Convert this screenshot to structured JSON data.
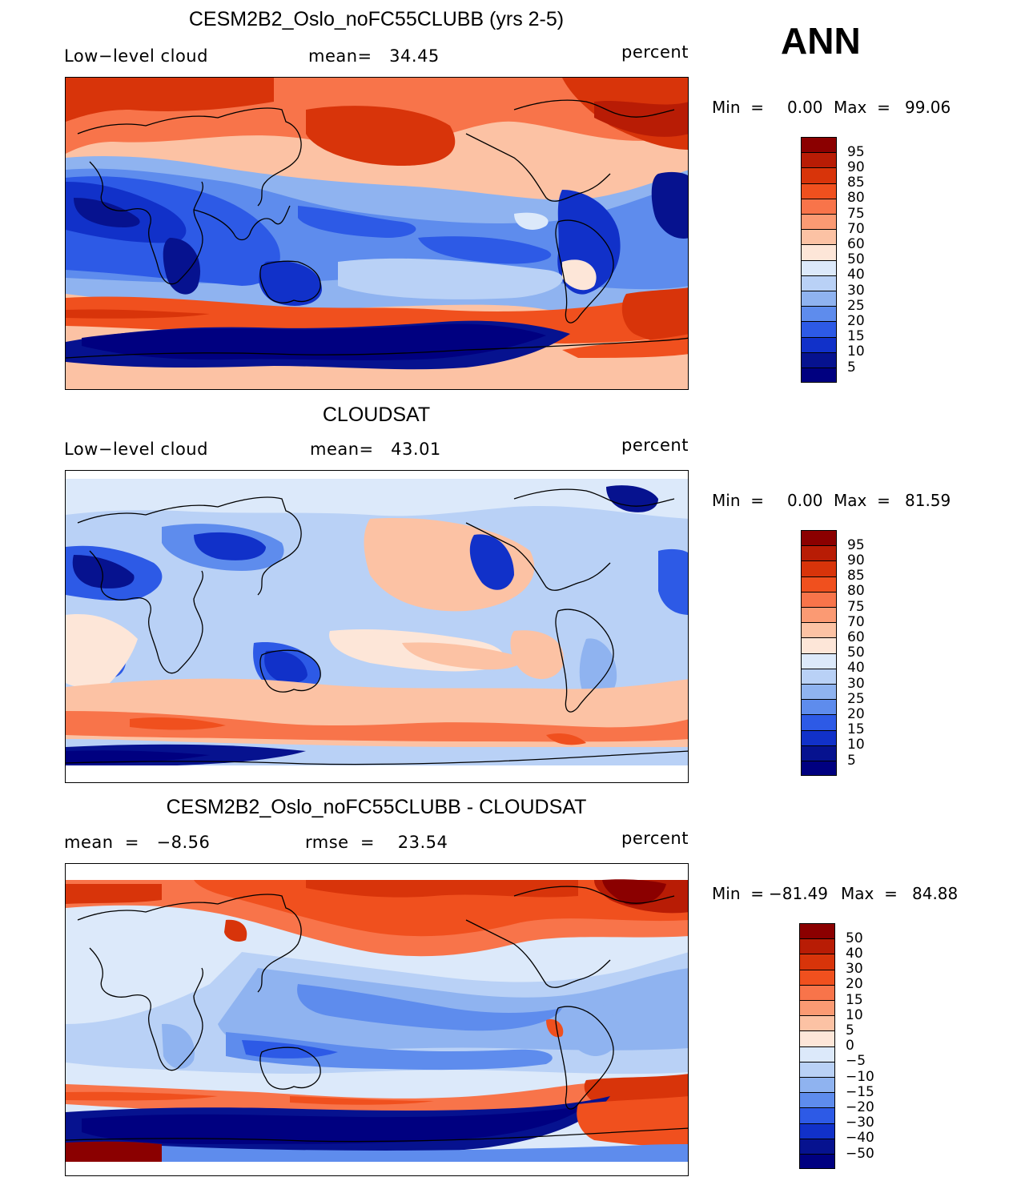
{
  "season": "ANN",
  "panels": [
    {
      "id": "model",
      "title": "CESM2B2_Oslo_noFC55CLUBB (yrs 2-5)",
      "left_label": "Low−level cloud",
      "center_label": "mean=   34.45",
      "units": "percent",
      "min_label": "Min  =",
      "min_value": "0.00",
      "max_label": "Max  =",
      "max_value": "99.06",
      "colorbar_ticks": [
        "95",
        "90",
        "85",
        "80",
        "75",
        "70",
        "60",
        "50",
        "40",
        "30",
        "25",
        "20",
        "15",
        "10",
        "5"
      ],
      "colorbar_colors": [
        "#8b0000",
        "#b81c05",
        "#d8340a",
        "#f0501e",
        "#f8744a",
        "#fb9a73",
        "#fcc2a4",
        "#fde6d8",
        "#dce9fa",
        "#b9d1f6",
        "#8fb3f0",
        "#5e8ced",
        "#2d5ae6",
        "#1131c9",
        "#06128f",
        "#000080"
      ]
    },
    {
      "id": "obs",
      "title": "CLOUDSAT",
      "left_label": "Low−level cloud",
      "center_label": "mean=   43.01",
      "units": "percent",
      "min_label": "Min  =",
      "min_value": "0.00",
      "max_label": "Max  =",
      "max_value": "81.59",
      "colorbar_ticks": [
        "95",
        "90",
        "85",
        "80",
        "75",
        "70",
        "60",
        "50",
        "40",
        "30",
        "25",
        "20",
        "15",
        "10",
        "5"
      ],
      "colorbar_colors": [
        "#8b0000",
        "#b81c05",
        "#d8340a",
        "#f0501e",
        "#f8744a",
        "#fb9a73",
        "#fcc2a4",
        "#fde6d8",
        "#dce9fa",
        "#b9d1f6",
        "#8fb3f0",
        "#5e8ced",
        "#2d5ae6",
        "#1131c9",
        "#06128f",
        "#000080"
      ]
    },
    {
      "id": "diff",
      "title": "CESM2B2_Oslo_noFC55CLUBB - CLOUDSAT",
      "left_label": "mean  =   −8.56",
      "center_label": "rmse  =    23.54",
      "units": "percent",
      "min_label": "Min  =",
      "min_value": "−81.49",
      "max_label": "Max  =",
      "max_value": "84.88",
      "colorbar_ticks": [
        "50",
        "40",
        "30",
        "20",
        "15",
        "10",
        "5",
        "0",
        "−5",
        "−10",
        "−15",
        "−20",
        "−30",
        "−40",
        "−50"
      ],
      "colorbar_colors": [
        "#8b0000",
        "#b81c05",
        "#d8340a",
        "#f0501e",
        "#f8744a",
        "#fb9a73",
        "#fcc2a4",
        "#fde6d8",
        "#dce9fa",
        "#b9d1f6",
        "#8fb3f0",
        "#5e8ced",
        "#2d5ae6",
        "#1131c9",
        "#06128f",
        "#000080"
      ]
    }
  ]
}
